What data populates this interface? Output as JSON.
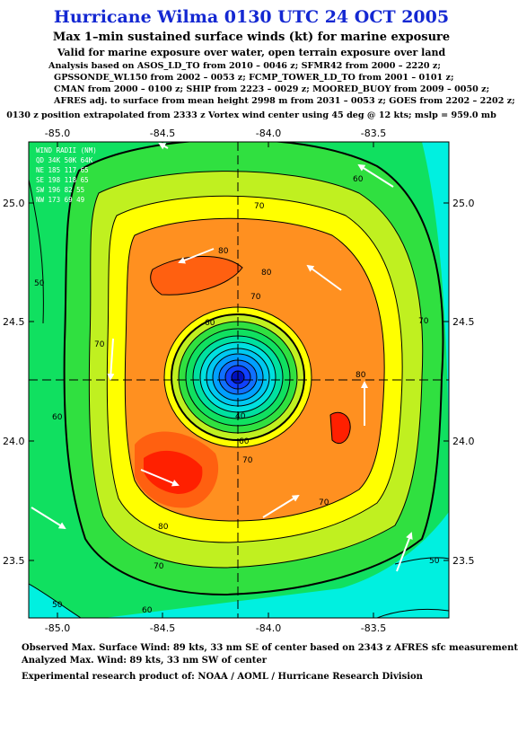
{
  "title": "Hurricane Wilma 0130 UTC 24 OCT 2005",
  "subtitle": "Max 1–min sustained surface winds (kt) for marine exposure",
  "subtitle2": "Valid for marine exposure over water, open terrain exposure over land",
  "analysis_lines": [
    "Analysis based on  ASOS_LD_TO from 2010 – 0046 z;  SFMR42 from 2000 – 2220 z;",
    "GPSSONDE_WL150 from 2002 – 0053 z;  FCMP_TOWER_LD_TO from 2001 – 0101 z;",
    "CMAN from 2000 – 0100 z;  SHIP from 2223 – 0029 z;  MOORED_BUOY from 2009 – 0050 z;",
    "AFRES adj. to surface from mean height 2998 m from 2031 – 0053 z;  GOES from 2202 – 2202 z;"
  ],
  "position_note": "0130 z position extrapolated from 2333 z Vortex wind center using 45 deg @ 12 kts; mslp = 959.0 mb",
  "map": {
    "lon_ticks": [
      "-85.0",
      "-84.5",
      "-84.0",
      "-83.5"
    ],
    "lat_ticks": [
      "25.0",
      "24.5",
      "24.0",
      "23.5"
    ],
    "contour_labels": [
      "70",
      "80",
      "80",
      "70",
      "60",
      "70",
      "80",
      "70",
      "60",
      "70",
      "50",
      "50",
      "60",
      "60",
      "70",
      "80",
      "70",
      "40",
      "60",
      "50"
    ],
    "wind_radii_table": [
      "WIND RADII (NM)",
      "QD  34K  50K  64K",
      "NE  185  117   65",
      "SE  198  118   65",
      "SW  196   82   55",
      "NW  173   69   49"
    ],
    "colors": {
      "ocean_low": "#00f0e0",
      "green": "#10e060",
      "yellow_green": "#c0f020",
      "yellow": "#ffff00",
      "orange": "#ff9020",
      "dark_orange": "#ff6010",
      "red": "#ff2000",
      "eye_blue": "#1040ff",
      "eye_center": "#0010c0"
    }
  },
  "footer": {
    "observed": "Observed Max. Surface Wind: 89 kts, 33 nm SE of center based on 2343 z AFRES sfc measurement",
    "analyzed": "Analyzed Max. Wind: 89 kts, 33 nm SW of center",
    "credit": "Experimental research product of:  NOAA / AOML / Hurricane Research Division"
  }
}
